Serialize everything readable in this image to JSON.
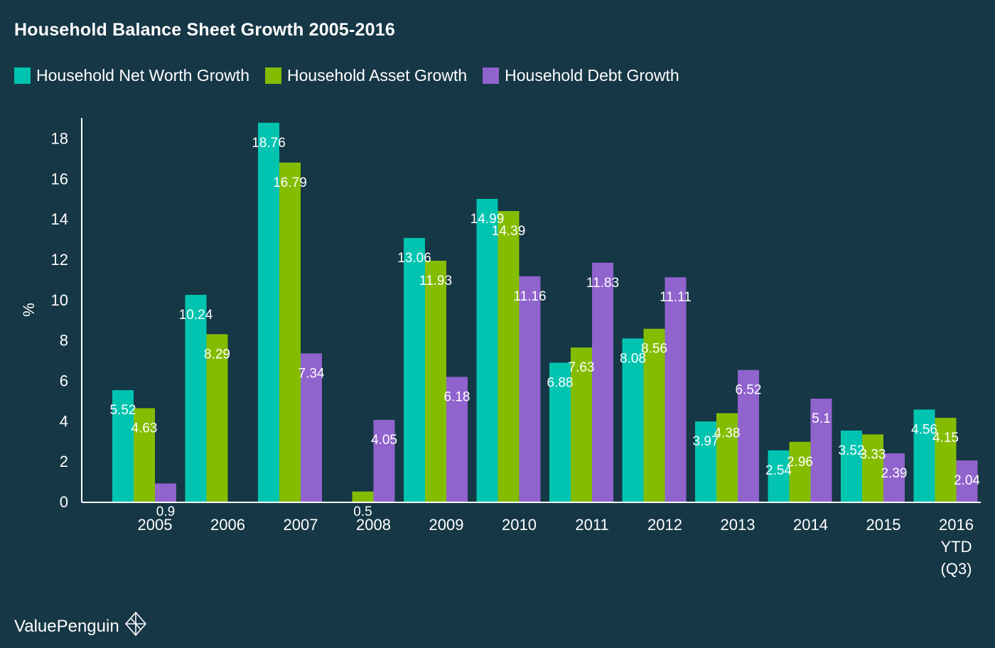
{
  "chart_data": {
    "type": "bar",
    "title": "Household Balance Sheet Growth 2005-2016",
    "ylabel": "%",
    "xlabel": "",
    "ylim": [
      0,
      19
    ],
    "yticks": [
      0,
      2,
      4,
      6,
      8,
      10,
      12,
      14,
      16,
      18
    ],
    "categories": [
      "2005",
      "2006",
      "2007",
      "2008",
      "2009",
      "2010",
      "2011",
      "2012",
      "2013",
      "2014",
      "2015",
      "2016 YTD (Q3)"
    ],
    "category_lines": [
      [
        "2005"
      ],
      [
        "2006"
      ],
      [
        "2007"
      ],
      [
        "2008"
      ],
      [
        "2009"
      ],
      [
        "2010"
      ],
      [
        "2011"
      ],
      [
        "2012"
      ],
      [
        "2013"
      ],
      [
        "2014"
      ],
      [
        "2015"
      ],
      [
        "2016",
        "YTD",
        "(Q3)"
      ]
    ],
    "series": [
      {
        "name": "Household Net Worth Growth",
        "color": "#00c4b0",
        "values": [
          5.52,
          10.24,
          18.76,
          null,
          13.06,
          14.99,
          6.88,
          8.08,
          3.97,
          2.54,
          3.52,
          4.56
        ],
        "labels": [
          "5.52",
          "10.24",
          "18.76",
          "",
          "13.06",
          "14.99",
          "6.88",
          "8.08",
          "3.97",
          "2.54",
          "3.52",
          "4.56"
        ]
      },
      {
        "name": "Household Asset Growth",
        "color": "#84bd00",
        "values": [
          4.63,
          8.29,
          16.79,
          0.5,
          11.93,
          14.39,
          7.63,
          8.56,
          4.38,
          2.96,
          3.33,
          4.15
        ],
        "labels": [
          "4.63",
          "8.29",
          "16.79",
          "0.5",
          "11.93",
          "14.39",
          "7.63",
          "8.56",
          "4.38",
          "2.96",
          "3.33",
          "4.15"
        ]
      },
      {
        "name": "Household Debt Growth",
        "color": "#9063cd",
        "values": [
          0.9,
          null,
          7.34,
          4.05,
          6.18,
          11.16,
          11.83,
          11.11,
          6.52,
          5.1,
          2.39,
          2.04
        ],
        "labels": [
          "0.9",
          "",
          "7.34",
          "4.05",
          "6.18",
          "11.16",
          "11.83",
          "11.11",
          "6.52",
          "5.1",
          "2.39",
          "2.04"
        ]
      }
    ],
    "grid": false,
    "legend_position": "top-left"
  },
  "brand": {
    "name": "ValuePenguin",
    "icon": "valuepenguin-logo-icon"
  }
}
